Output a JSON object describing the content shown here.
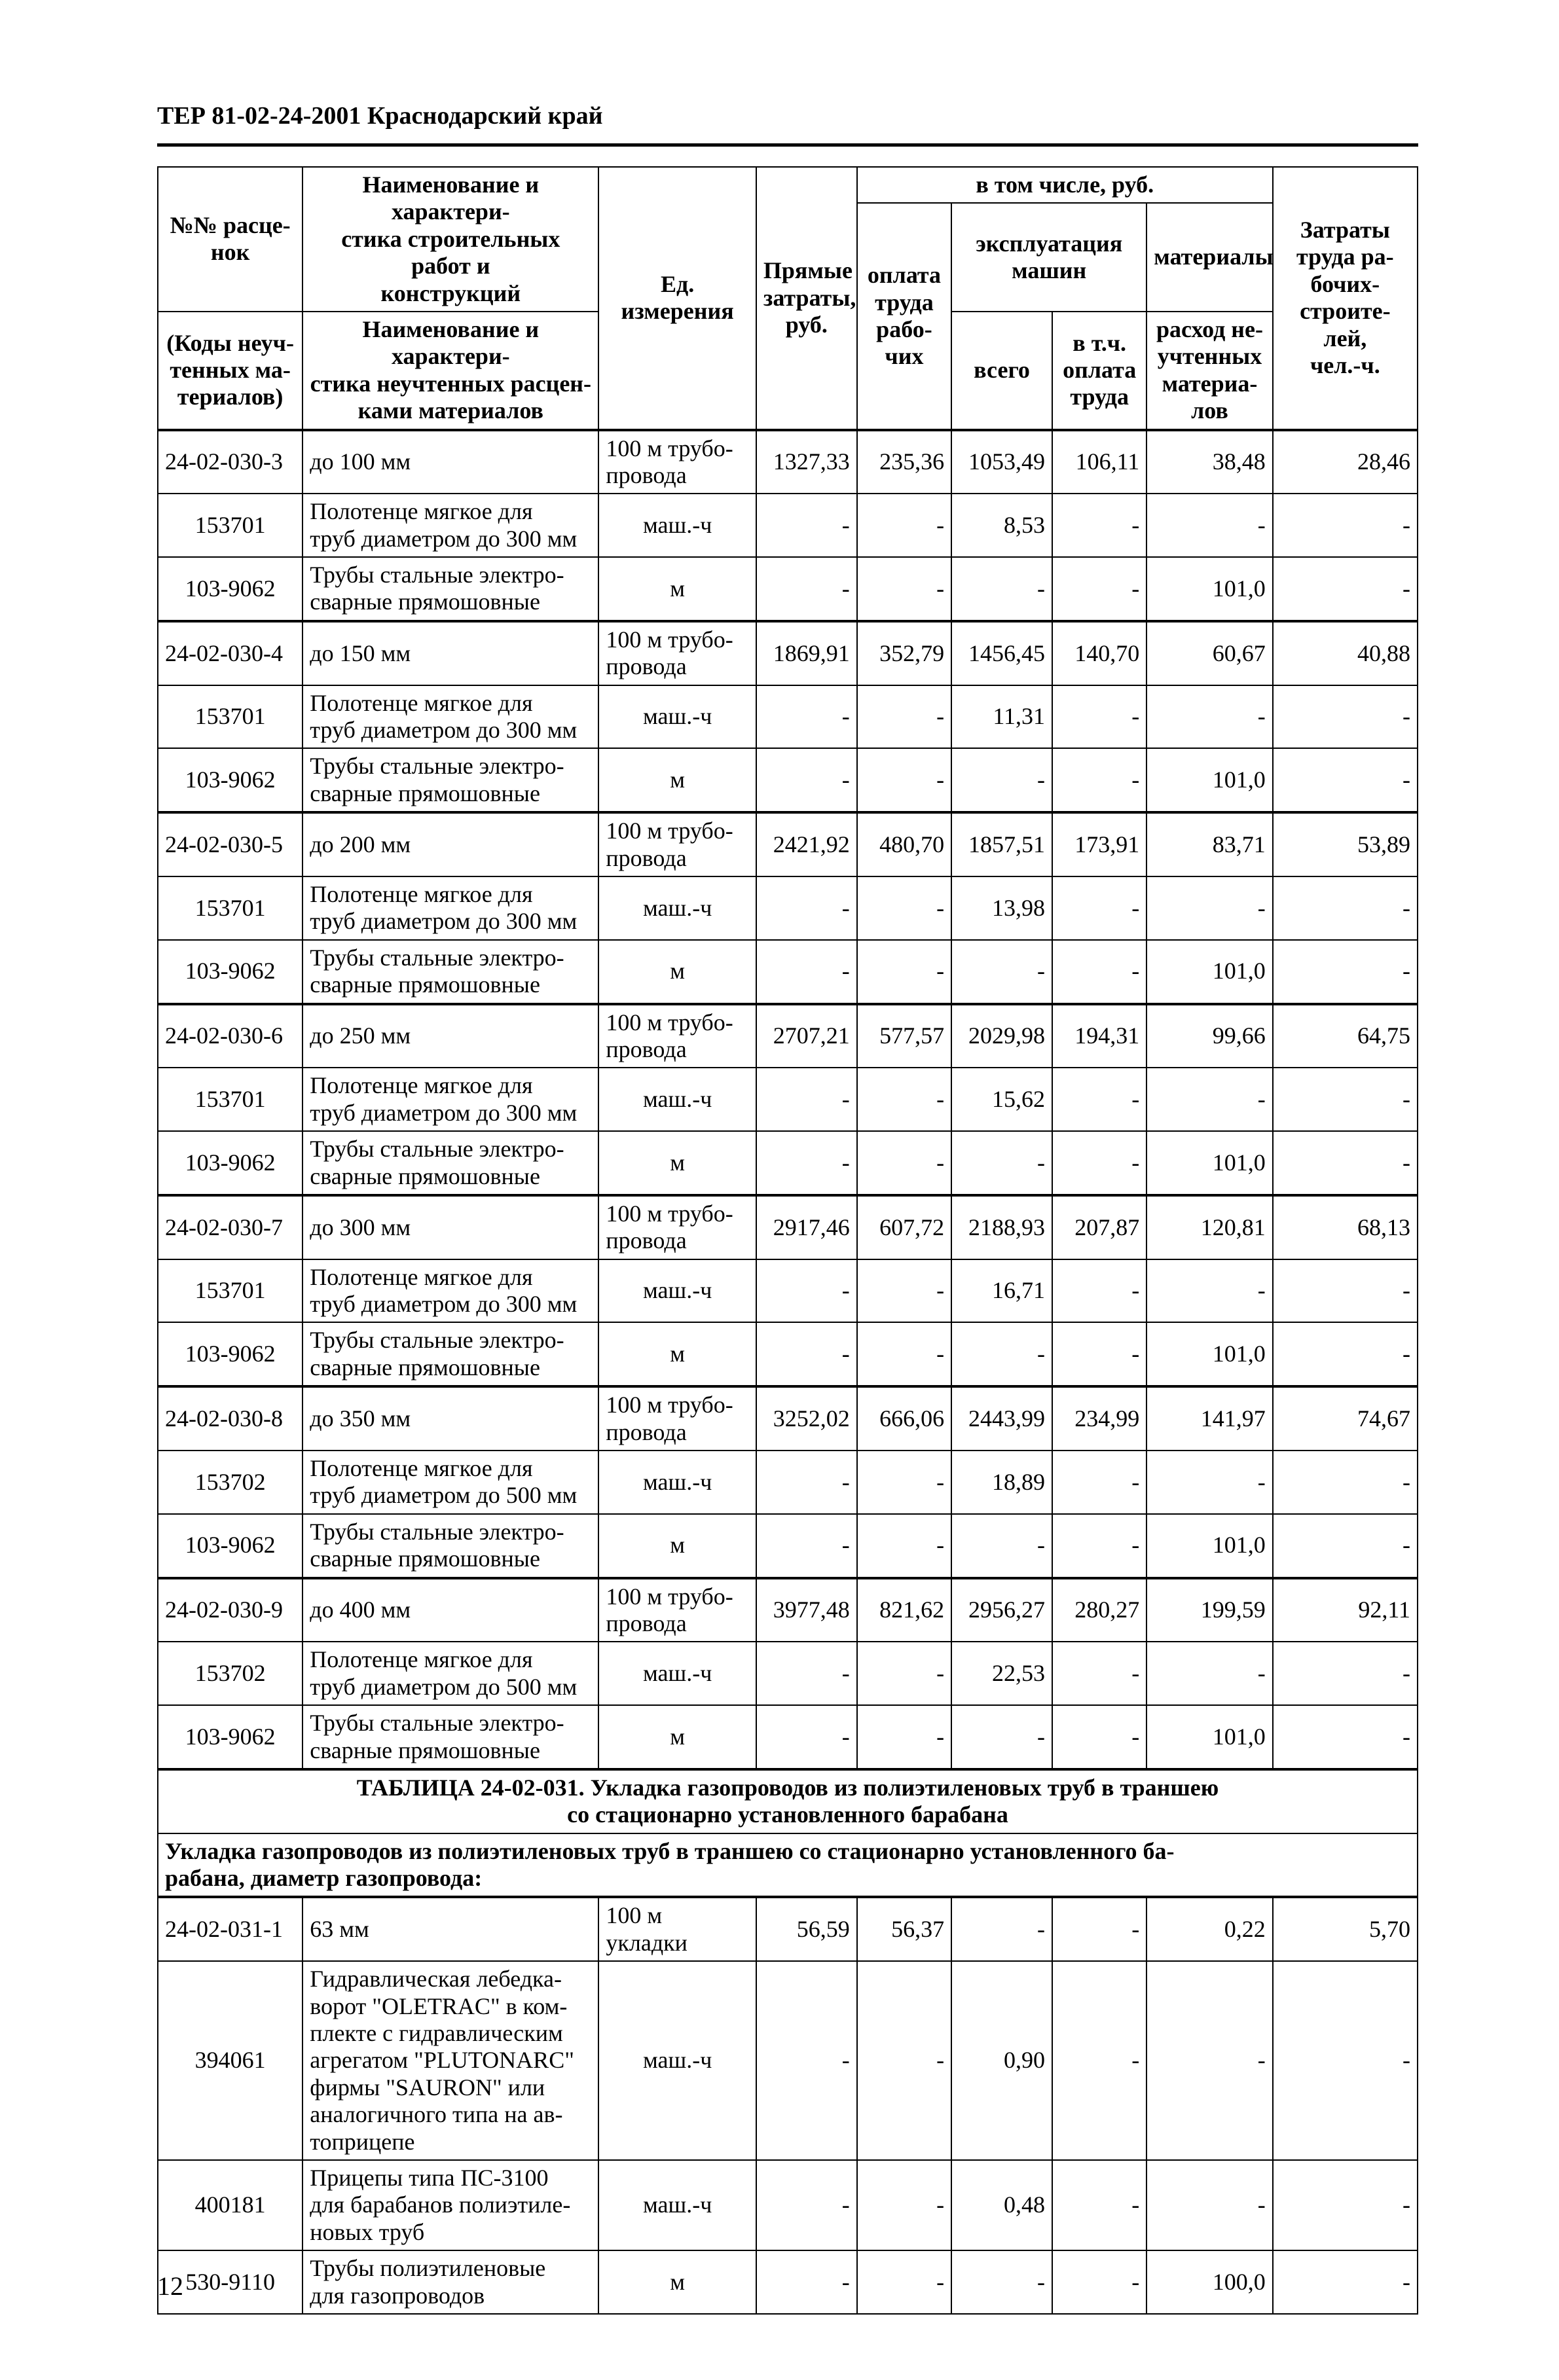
{
  "header": "ТЕР 81-02-24-2001 Краснодарский край",
  "page_number": "12",
  "widths_pct": [
    11.5,
    23.5,
    12.5,
    8,
    7.5,
    8,
    7.5,
    10,
    11.5
  ],
  "thead": {
    "r1c1": "№№ расце-\nнок",
    "r1c2": "Наименование и характери-\nстика строительных работ и\nконструкций",
    "r1c3": "Ед. измерения",
    "r1c4": "Прямые\nзатраты,\nруб.",
    "r1c5": "в том числе, руб.",
    "r1c6": "Затраты\nтруда ра-\nбочих-\nстроите-\nлей,\nчел.-ч.",
    "r2c5": "оплата\nтруда\nрабо-\nчих",
    "r2c6": "эксплуатация\nмашин",
    "r2c8": "материалы",
    "r3c1": "(Коды неуч-\nтенных ма-\nтериалов)",
    "r3c2": "Наименование и характери-\nстика неучтенных расцен-\nками материалов",
    "r3c6": "всего",
    "r3c7": "в т.ч.\nоплата\nтруда",
    "r3c8": "расход не-\nучтенных\nматериа-\nлов"
  },
  "groups": [
    {
      "main": [
        "24-02-030-3",
        "до 100 мм",
        "100 м трубо-\nпровода",
        "1327,33",
        "235,36",
        "1053,49",
        "106,11",
        "38,48",
        "28,46"
      ],
      "subs": [
        [
          "153701",
          "Полотенце мягкое для\nтруб диаметром до 300 мм",
          "маш.-ч",
          "-",
          "-",
          "8,53",
          "-",
          "-",
          "-"
        ],
        [
          "103-9062",
          "Трубы стальные электро-\nсварные прямошовные",
          "м",
          "-",
          "-",
          "-",
          "-",
          "101,0",
          "-"
        ]
      ]
    },
    {
      "main": [
        "24-02-030-4",
        "до 150 мм",
        "100 м трубо-\nпровода",
        "1869,91",
        "352,79",
        "1456,45",
        "140,70",
        "60,67",
        "40,88"
      ],
      "subs": [
        [
          "153701",
          "Полотенце мягкое для\nтруб диаметром до 300 мм",
          "маш.-ч",
          "-",
          "-",
          "11,31",
          "-",
          "-",
          "-"
        ],
        [
          "103-9062",
          "Трубы стальные электро-\nсварные прямошовные",
          "м",
          "-",
          "-",
          "-",
          "-",
          "101,0",
          "-"
        ]
      ]
    },
    {
      "main": [
        "24-02-030-5",
        "до 200 мм",
        "100 м трубо-\nпровода",
        "2421,92",
        "480,70",
        "1857,51",
        "173,91",
        "83,71",
        "53,89"
      ],
      "subs": [
        [
          "153701",
          "Полотенце мягкое для\nтруб диаметром до 300 мм",
          "маш.-ч",
          "-",
          "-",
          "13,98",
          "-",
          "-",
          "-"
        ],
        [
          "103-9062",
          "Трубы стальные электро-\nсварные прямошовные",
          "м",
          "-",
          "-",
          "-",
          "-",
          "101,0",
          "-"
        ]
      ]
    },
    {
      "main": [
        "24-02-030-6",
        "до 250 мм",
        "100 м трубо-\nпровода",
        "2707,21",
        "577,57",
        "2029,98",
        "194,31",
        "99,66",
        "64,75"
      ],
      "subs": [
        [
          "153701",
          "Полотенце мягкое для\nтруб диаметром до 300 мм",
          "маш.-ч",
          "-",
          "-",
          "15,62",
          "-",
          "-",
          "-"
        ],
        [
          "103-9062",
          "Трубы стальные электро-\nсварные прямошовные",
          "м",
          "-",
          "-",
          "-",
          "-",
          "101,0",
          "-"
        ]
      ]
    },
    {
      "main": [
        "24-02-030-7",
        "до 300 мм",
        "100 м трубо-\nпровода",
        "2917,46",
        "607,72",
        "2188,93",
        "207,87",
        "120,81",
        "68,13"
      ],
      "subs": [
        [
          "153701",
          "Полотенце мягкое для\nтруб диаметром до 300 мм",
          "маш.-ч",
          "-",
          "-",
          "16,71",
          "-",
          "-",
          "-"
        ],
        [
          "103-9062",
          "Трубы стальные электро-\nсварные прямошовные",
          "м",
          "-",
          "-",
          "-",
          "-",
          "101,0",
          "-"
        ]
      ]
    },
    {
      "main": [
        "24-02-030-8",
        "до 350 мм",
        "100 м трубо-\nпровода",
        "3252,02",
        "666,06",
        "2443,99",
        "234,99",
        "141,97",
        "74,67"
      ],
      "subs": [
        [
          "153702",
          "Полотенце мягкое для\nтруб диаметром до 500 мм",
          "маш.-ч",
          "-",
          "-",
          "18,89",
          "-",
          "-",
          "-"
        ],
        [
          "103-9062",
          "Трубы стальные электро-\nсварные прямошовные",
          "м",
          "-",
          "-",
          "-",
          "-",
          "101,0",
          "-"
        ]
      ]
    },
    {
      "main": [
        "24-02-030-9",
        "до 400 мм",
        "100 м трубо-\nпровода",
        "3977,48",
        "821,62",
        "2956,27",
        "280,27",
        "199,59",
        "92,11"
      ],
      "subs": [
        [
          "153702",
          "Полотенце мягкое для\nтруб диаметром до 500 мм",
          "маш.-ч",
          "-",
          "-",
          "22,53",
          "-",
          "-",
          "-"
        ],
        [
          "103-9062",
          "Трубы стальные электро-\nсварные прямошовные",
          "м",
          "-",
          "-",
          "-",
          "-",
          "101,0",
          "-"
        ]
      ]
    }
  ],
  "section": {
    "head": "ТАБЛИЦА 24-02-031. Укладка газопроводов из полиэтиленовых труб в траншею\nсо стационарно установленного барабана",
    "sub": "Укладка газопроводов из полиэтиленовых труб в траншею со стационарно установленного ба-\nрабана, диаметр газопровода:"
  },
  "groups2": [
    {
      "main": [
        "24-02-031-1",
        "63 мм",
        "100 м укладки",
        "56,59",
        "56,37",
        "-",
        "-",
        "0,22",
        "5,70"
      ],
      "subs": [
        [
          "394061",
          "Гидравлическая лебедка-\nворот \"OLETRAC\" в ком-\nплекте с гидравлическим\nагрегатом \"PLUTONARC\"\nфирмы \"SAURON\" или\nаналогичного типа на ав-\nтоприцепе",
          "маш.-ч",
          "-",
          "-",
          "0,90",
          "-",
          "-",
          "-"
        ],
        [
          "400181",
          "Прицепы типа ПС-3100\nдля барабанов полиэтиле-\nновых труб",
          "маш.-ч",
          "-",
          "-",
          "0,48",
          "-",
          "-",
          "-"
        ],
        [
          "530-9110",
          "Трубы полиэтиленовые\nдля газопроводов",
          "м",
          "-",
          "-",
          "-",
          "-",
          "100,0",
          "-"
        ]
      ]
    }
  ]
}
